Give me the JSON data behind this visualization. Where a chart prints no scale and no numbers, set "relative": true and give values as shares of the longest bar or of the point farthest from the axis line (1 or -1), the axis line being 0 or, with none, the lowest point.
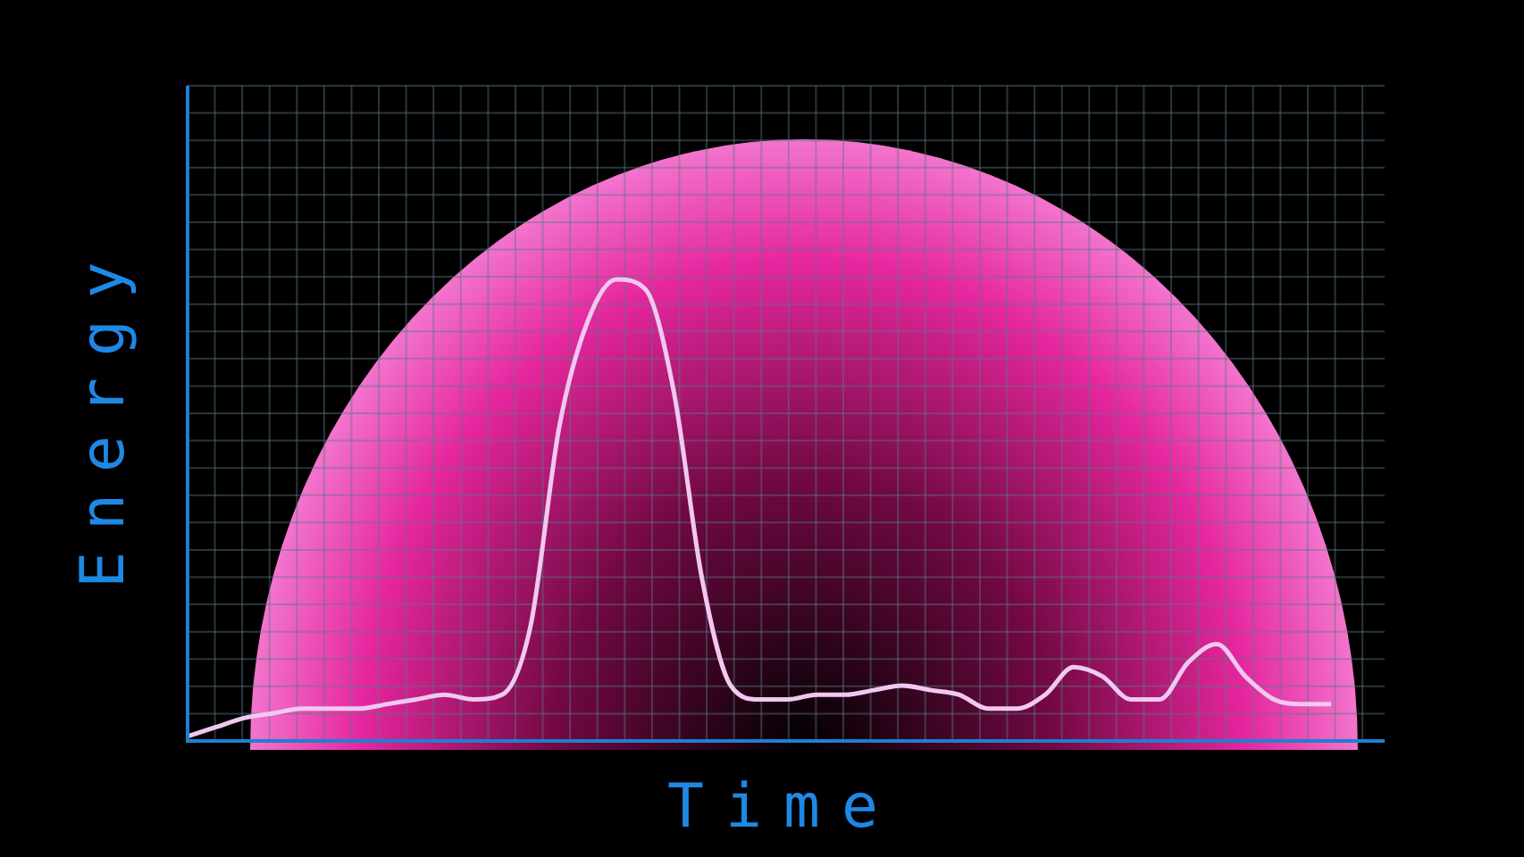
{
  "chart_data": {
    "type": "line",
    "relative": true,
    "xlabel": "Time",
    "ylabel": "Energy",
    "grid": true,
    "marker": "none",
    "line_style": "solid",
    "categories": [
      null,
      null,
      null,
      null,
      null,
      null,
      null,
      null,
      null,
      null,
      null,
      null,
      null,
      null,
      null,
      null,
      null,
      null,
      null,
      null,
      null,
      null,
      null,
      null,
      null,
      null,
      null,
      null,
      null,
      null,
      null,
      null,
      null,
      null,
      null,
      null,
      null,
      null,
      null,
      null,
      null
    ],
    "series": [
      {
        "color": "#f0c8f0",
        "values": [
          0.01,
          0.03,
          0.05,
          0.06,
          0.07,
          0.07,
          0.07,
          0.08,
          0.09,
          0.1,
          0.09,
          0.1,
          0.25,
          0.68,
          0.91,
          1,
          0.98,
          0.76,
          0.35,
          0.12,
          0.09,
          0.09,
          0.1,
          0.1,
          0.11,
          0.12,
          0.11,
          0.1,
          0.07,
          0.07,
          0.1,
          0.16,
          0.14,
          0.09,
          0.09,
          0.17,
          0.21,
          0.14,
          0.09,
          0.08,
          0.08
        ]
      }
    ]
  }
}
